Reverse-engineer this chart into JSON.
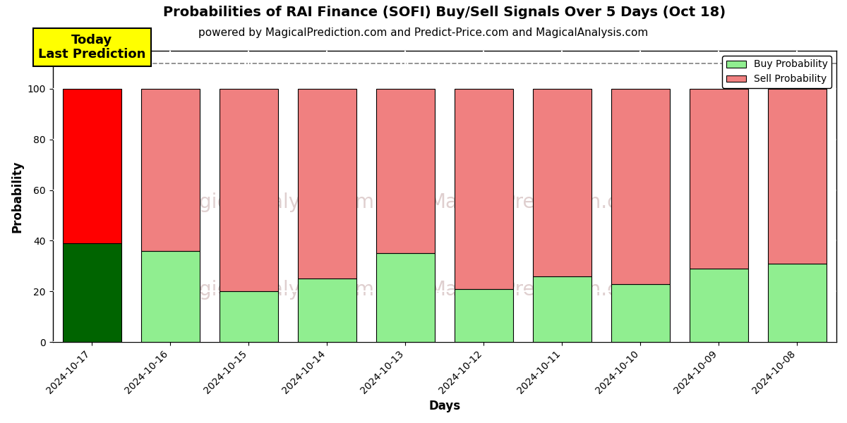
{
  "title": "Probabilities of RAI Finance (SOFI) Buy/Sell Signals Over 5 Days (Oct 18)",
  "subtitle": "powered by MagicalPrediction.com and Predict-Price.com and MagicalAnalysis.com",
  "xlabel": "Days",
  "ylabel": "Probability",
  "days": [
    "2024-10-17",
    "2024-10-16",
    "2024-10-15",
    "2024-10-14",
    "2024-10-13",
    "2024-10-12",
    "2024-10-11",
    "2024-10-10",
    "2024-10-09",
    "2024-10-08"
  ],
  "buy_values": [
    39,
    36,
    20,
    25,
    35,
    21,
    26,
    23,
    29,
    31
  ],
  "sell_values": [
    61,
    64,
    80,
    75,
    65,
    79,
    74,
    77,
    71,
    69
  ],
  "today_buy_color": "#006400",
  "today_sell_color": "#FF0000",
  "other_buy_color": "#90EE90",
  "other_sell_color": "#F08080",
  "bar_edge_color": "#000000",
  "today_annotation": "Today\nLast Prediction",
  "legend_buy_label": "Buy Probability",
  "legend_sell_label": "Sell Probability",
  "dashed_line_y": 110,
  "ylim": [
    0,
    115
  ],
  "yticks": [
    0,
    20,
    40,
    60,
    80,
    100
  ],
  "background_color": "#ffffff",
  "title_fontsize": 14,
  "subtitle_fontsize": 11,
  "grid_color": "#ffffff",
  "bar_width": 0.75
}
